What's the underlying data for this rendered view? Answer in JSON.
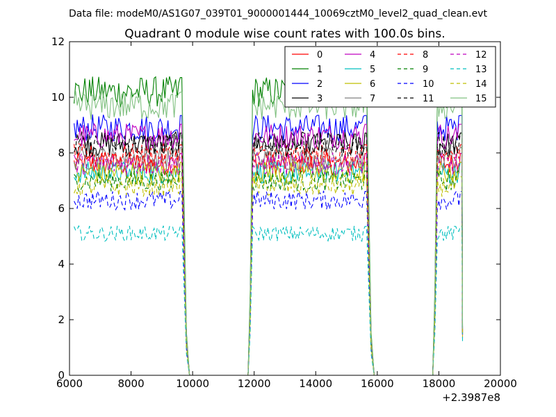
{
  "chart_data": {
    "type": "line",
    "suptitle": "Data file: modeM0/AS1G07_039T01_9000001444_10069cztM0_level2_quad_clean.evt",
    "title": "Quadrant 0 module wise count rates with 100.0s bins.",
    "xlabel": "",
    "ylabel": "",
    "x_offset_label": "+2.3987e8",
    "xlim": [
      6000,
      20000
    ],
    "ylim": [
      0,
      12
    ],
    "xticks": [
      6000,
      8000,
      10000,
      12000,
      14000,
      16000,
      18000,
      20000
    ],
    "yticks": [
      0,
      2,
      4,
      6,
      8,
      10,
      12
    ],
    "grid": false,
    "legend_position": "top-right",
    "legend_columns": 4,
    "segments": [
      [
        6150,
        9650
      ],
      [
        11950,
        15650
      ],
      [
        17950,
        18750
      ]
    ],
    "series": [
      {
        "name": "0",
        "color": "#ff0000",
        "dash": "solid",
        "level": 7.6
      },
      {
        "name": "1",
        "color": "#008000",
        "dash": "solid",
        "level": 10.2
      },
      {
        "name": "2",
        "color": "#0000ff",
        "dash": "solid",
        "level": 8.9
      },
      {
        "name": "3",
        "color": "#000000",
        "dash": "solid",
        "level": 8.3
      },
      {
        "name": "4",
        "color": "#bf00bf",
        "dash": "solid",
        "level": 8.6
      },
      {
        "name": "5",
        "color": "#00bfbf",
        "dash": "solid",
        "level": 7.3
      },
      {
        "name": "6",
        "color": "#bfbf00",
        "dash": "solid",
        "level": 7.3
      },
      {
        "name": "7",
        "color": "#808080",
        "dash": "solid",
        "level": 7.8
      },
      {
        "name": "8",
        "color": "#ff0000",
        "dash": "dashed",
        "level": 7.9
      },
      {
        "name": "9",
        "color": "#008000",
        "dash": "dashed",
        "level": 7.0
      },
      {
        "name": "10",
        "color": "#0000ff",
        "dash": "dashed",
        "level": 6.3
      },
      {
        "name": "11",
        "color": "#000000",
        "dash": "dashed",
        "level": 8.3
      },
      {
        "name": "12",
        "color": "#bf00bf",
        "dash": "dashed",
        "level": 7.6
      },
      {
        "name": "13",
        "color": "#00bfbf",
        "dash": "dashed",
        "level": 5.1
      },
      {
        "name": "14",
        "color": "#bfbf00",
        "dash": "dashed",
        "level": 6.8
      },
      {
        "name": "15",
        "color": "#80c080",
        "dash": "solid",
        "level": 9.7
      }
    ]
  }
}
